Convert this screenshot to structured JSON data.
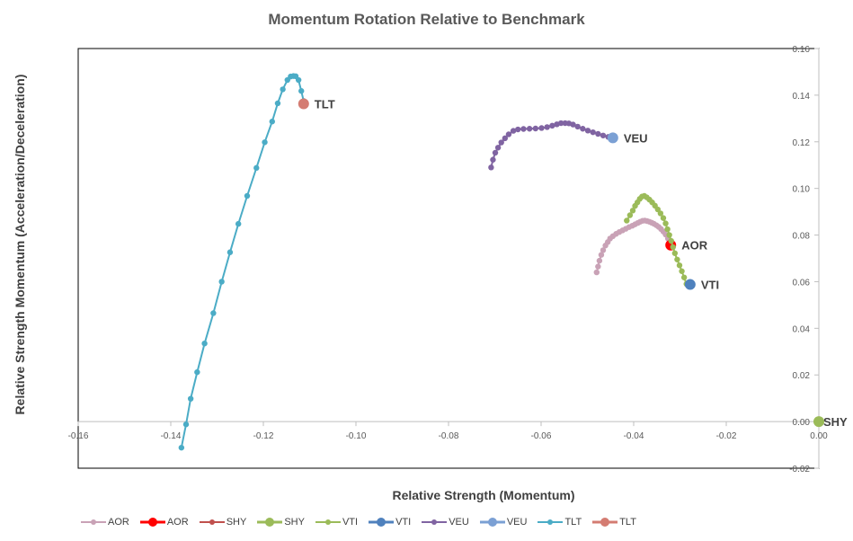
{
  "chart_data": {
    "type": "scatter",
    "title": "Momentum Rotation Relative to Benchmark",
    "xlabel": "Relative Strength (Momentum)",
    "ylabel": "Relative Strength Momentum (Acceleration/Deceleration)",
    "xlim": [
      -0.16,
      0.0
    ],
    "ylim": [
      -0.02,
      0.16
    ],
    "x_ticks": [
      "-0.16",
      "-0.14",
      "-0.12",
      "-0.10",
      "-0.08",
      "-0.06",
      "-0.04",
      "-0.02",
      "0.00"
    ],
    "y_ticks": [
      "-0.02",
      "0.00",
      "0.02",
      "0.04",
      "0.06",
      "0.08",
      "0.10",
      "0.12",
      "0.14",
      "0.16"
    ],
    "grid": false,
    "legend_position": "bottom",
    "series": [
      {
        "name": "AOR",
        "color": "#c9a2b6",
        "kind": "trail",
        "points": [
          [
            -0.048,
            0.064
          ],
          [
            -0.0477,
            0.0665
          ],
          [
            -0.0474,
            0.069
          ],
          [
            -0.047,
            0.0715
          ],
          [
            -0.0466,
            0.0735
          ],
          [
            -0.0461,
            0.0755
          ],
          [
            -0.0456,
            0.077
          ],
          [
            -0.0451,
            0.0785
          ],
          [
            -0.0445,
            0.0795
          ],
          [
            -0.0438,
            0.0805
          ],
          [
            -0.0431,
            0.0813
          ],
          [
            -0.0424,
            0.082
          ],
          [
            -0.0417,
            0.0827
          ],
          [
            -0.041,
            0.0834
          ],
          [
            -0.0403,
            0.084
          ],
          [
            -0.0397,
            0.0846
          ],
          [
            -0.0391,
            0.0852
          ],
          [
            -0.0386,
            0.0857
          ],
          [
            -0.0381,
            0.0861
          ],
          [
            -0.0376,
            0.0862
          ],
          [
            -0.0371,
            0.086
          ],
          [
            -0.0366,
            0.0857
          ],
          [
            -0.0361,
            0.0853
          ],
          [
            -0.0356,
            0.0848
          ],
          [
            -0.0351,
            0.0842
          ],
          [
            -0.0346,
            0.0835
          ],
          [
            -0.0341,
            0.0826
          ],
          [
            -0.0336,
            0.0815
          ],
          [
            -0.0331,
            0.0802
          ],
          [
            -0.0326,
            0.0785
          ],
          [
            -0.032,
            0.0765
          ]
        ]
      },
      {
        "name": "AOR",
        "color": "#ff0000",
        "kind": "marker",
        "points": [
          [
            -0.032,
            0.0757
          ]
        ],
        "label": "AOR"
      },
      {
        "name": "SHY",
        "color": "#c0504d",
        "kind": "trail",
        "points": []
      },
      {
        "name": "SHY",
        "color": "#9bbb59",
        "kind": "marker",
        "points": [
          [
            0.0,
            0.0
          ]
        ],
        "label": "SHY"
      },
      {
        "name": "VTI",
        "color": "#9bbb59",
        "kind": "trail",
        "points": [
          [
            -0.0415,
            0.0862
          ],
          [
            -0.0408,
            0.0885
          ],
          [
            -0.0402,
            0.0905
          ],
          [
            -0.0397,
            0.0925
          ],
          [
            -0.0392,
            0.094
          ],
          [
            -0.0387,
            0.0955
          ],
          [
            -0.0382,
            0.0965
          ],
          [
            -0.0377,
            0.0968
          ],
          [
            -0.0372,
            0.0962
          ],
          [
            -0.0366,
            0.0952
          ],
          [
            -0.036,
            0.094
          ],
          [
            -0.0354,
            0.0926
          ],
          [
            -0.0348,
            0.091
          ],
          [
            -0.0342,
            0.0893
          ],
          [
            -0.0336,
            0.0873
          ],
          [
            -0.0331,
            0.085
          ],
          [
            -0.0327,
            0.0825
          ],
          [
            -0.0323,
            0.08
          ],
          [
            -0.0319,
            0.0775
          ],
          [
            -0.0315,
            0.0748
          ],
          [
            -0.0311,
            0.0722
          ],
          [
            -0.0306,
            0.0695
          ],
          [
            -0.0301,
            0.067
          ],
          [
            -0.0296,
            0.0645
          ],
          [
            -0.0291,
            0.0618
          ],
          [
            -0.0286,
            0.059
          ]
        ]
      },
      {
        "name": "VTI",
        "color": "#4f81bd",
        "kind": "marker",
        "points": [
          [
            -0.0278,
            0.0588
          ]
        ],
        "label": "VTI"
      },
      {
        "name": "VEU",
        "color": "#8064a2",
        "kind": "trail",
        "points": [
          [
            -0.0708,
            0.109
          ],
          [
            -0.0704,
            0.1123
          ],
          [
            -0.0699,
            0.1153
          ],
          [
            -0.0693,
            0.1175
          ],
          [
            -0.0686,
            0.1197
          ],
          [
            -0.0678,
            0.1215
          ],
          [
            -0.067,
            0.1232
          ],
          [
            -0.066,
            0.1247
          ],
          [
            -0.065,
            0.1253
          ],
          [
            -0.0638,
            0.1255
          ],
          [
            -0.0625,
            0.1256
          ],
          [
            -0.0612,
            0.1257
          ],
          [
            -0.0599,
            0.1259
          ],
          [
            -0.0587,
            0.1263
          ],
          [
            -0.0576,
            0.1269
          ],
          [
            -0.0566,
            0.1275
          ],
          [
            -0.0557,
            0.128
          ],
          [
            -0.0548,
            0.128
          ],
          [
            -0.054,
            0.1279
          ],
          [
            -0.0531,
            0.1274
          ],
          [
            -0.0521,
            0.1265
          ],
          [
            -0.051,
            0.1256
          ],
          [
            -0.0499,
            0.1248
          ],
          [
            -0.0488,
            0.1241
          ],
          [
            -0.0477,
            0.1234
          ],
          [
            -0.0466,
            0.1227
          ],
          [
            -0.0455,
            0.1221
          ]
        ]
      },
      {
        "name": "VEU",
        "color": "#7ba0d4",
        "kind": "marker",
        "points": [
          [
            -0.0445,
            0.1217
          ]
        ],
        "label": "VEU"
      },
      {
        "name": "TLT",
        "color": "#4bacc6",
        "kind": "trail",
        "points": [
          [
            -0.1377,
            -0.0112
          ],
          [
            -0.1367,
            -0.0012
          ],
          [
            -0.1357,
            0.0098
          ],
          [
            -0.1343,
            0.0212
          ],
          [
            -0.1327,
            0.0335
          ],
          [
            -0.1308,
            0.0465
          ],
          [
            -0.129,
            0.06
          ],
          [
            -0.1272,
            0.0726
          ],
          [
            -0.1254,
            0.0848
          ],
          [
            -0.1235,
            0.0968
          ],
          [
            -0.1215,
            0.1088
          ],
          [
            -0.1197,
            0.1198
          ],
          [
            -0.1181,
            0.1287
          ],
          [
            -0.1169,
            0.1365
          ],
          [
            -0.1158,
            0.1425
          ],
          [
            -0.1148,
            0.1465
          ],
          [
            -0.1141,
            0.148
          ],
          [
            -0.1135,
            0.1482
          ],
          [
            -0.113,
            0.1481
          ],
          [
            -0.1124,
            0.1465
          ],
          [
            -0.1118,
            0.1418
          ],
          [
            -0.1113,
            0.1375
          ]
        ]
      },
      {
        "name": "TLT",
        "color": "#d47c72",
        "kind": "marker",
        "points": [
          [
            -0.1113,
            0.1363
          ]
        ],
        "label": "TLT"
      }
    ]
  }
}
